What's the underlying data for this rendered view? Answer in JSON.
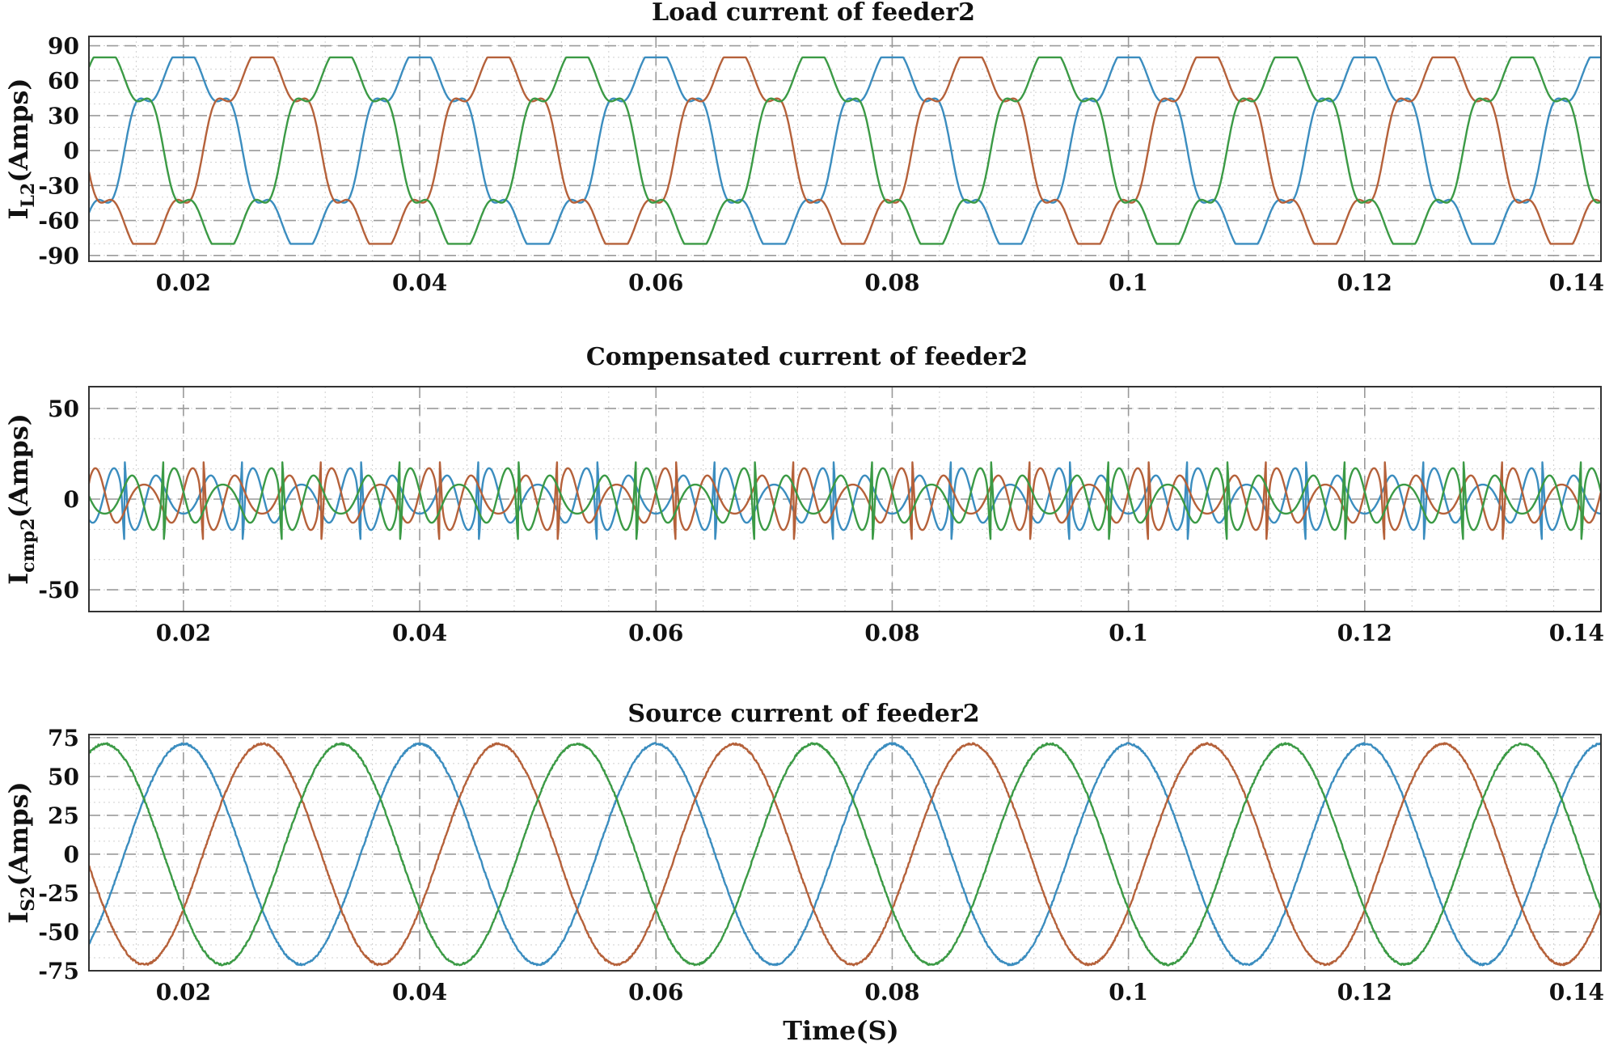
{
  "chart_data": [
    {
      "type": "line",
      "title": "Load current of feeder2",
      "ylabel": "I",
      "ylabel_sub": "L2",
      "ylabel_unit": "(Amps)",
      "xlabel": "",
      "xlim": [
        0.012,
        0.14
      ],
      "ylim": [
        -95,
        98
      ],
      "x_ticks": [
        0.02,
        0.04,
        0.06,
        0.08,
        0.1,
        0.12,
        0.14
      ],
      "x_tick_labels": [
        "0.02",
        "0.04",
        "0.06",
        "0.08",
        "0.1",
        "0.12",
        "0.14"
      ],
      "y_ticks": [
        90,
        60,
        30,
        0,
        -30,
        -60,
        -90
      ],
      "y_tick_labels": [
        "90",
        "60",
        "30",
        "0",
        "-30",
        "-60",
        "-90"
      ],
      "waveform": "distorted-load",
      "frequency_hz": 50,
      "amplitude": 80,
      "series": [
        {
          "color": "#3b8dbf",
          "phase_deg": 0
        },
        {
          "color": "#b5613a",
          "phase_deg": -120
        },
        {
          "color": "#3b9a45",
          "phase_deg": 120
        }
      ]
    },
    {
      "type": "line",
      "title": "Compensated current of feeder2",
      "ylabel": "I",
      "ylabel_sub": "cmp2",
      "ylabel_unit": "(Amps)",
      "xlabel": "",
      "xlim": [
        0.012,
        0.14
      ],
      "ylim": [
        -62,
        62
      ],
      "x_ticks": [
        0.02,
        0.04,
        0.06,
        0.08,
        0.1,
        0.12,
        0.14
      ],
      "x_tick_labels": [
        "0.02",
        "0.04",
        "0.06",
        "0.08",
        "0.1",
        "0.12",
        "0.14"
      ],
      "y_ticks": [
        50,
        0,
        -50
      ],
      "y_tick_labels": [
        "50",
        "0",
        "-50"
      ],
      "waveform": "compensating-spikes",
      "frequency_hz": 50,
      "amplitude": 25,
      "series": [
        {
          "color": "#3b8dbf",
          "phase_deg": 0
        },
        {
          "color": "#b5613a",
          "phase_deg": -120
        },
        {
          "color": "#3b9a45",
          "phase_deg": 120
        }
      ]
    },
    {
      "type": "line",
      "title": "Source current of feeder2",
      "ylabel": "I",
      "ylabel_sub": "S2",
      "ylabel_unit": "(Amps)",
      "xlabel": "Time(S)",
      "xlim": [
        0.012,
        0.14
      ],
      "ylim": [
        -75,
        77
      ],
      "x_ticks": [
        0.02,
        0.04,
        0.06,
        0.08,
        0.1,
        0.12,
        0.14
      ],
      "x_tick_labels": [
        "0.02",
        "0.04",
        "0.06",
        "0.08",
        "0.1",
        "0.12",
        "0.14"
      ],
      "y_ticks": [
        75,
        50,
        25,
        0,
        -25,
        -50,
        -75
      ],
      "y_tick_labels": [
        "75",
        "50",
        "25",
        "0",
        "-25",
        "-50",
        "-75"
      ],
      "waveform": "sine",
      "frequency_hz": 50,
      "amplitude": 71,
      "series": [
        {
          "color": "#3b8dbf",
          "phase_deg": 0
        },
        {
          "color": "#b5613a",
          "phase_deg": -120
        },
        {
          "color": "#3b9a45",
          "phase_deg": 120
        }
      ]
    }
  ]
}
